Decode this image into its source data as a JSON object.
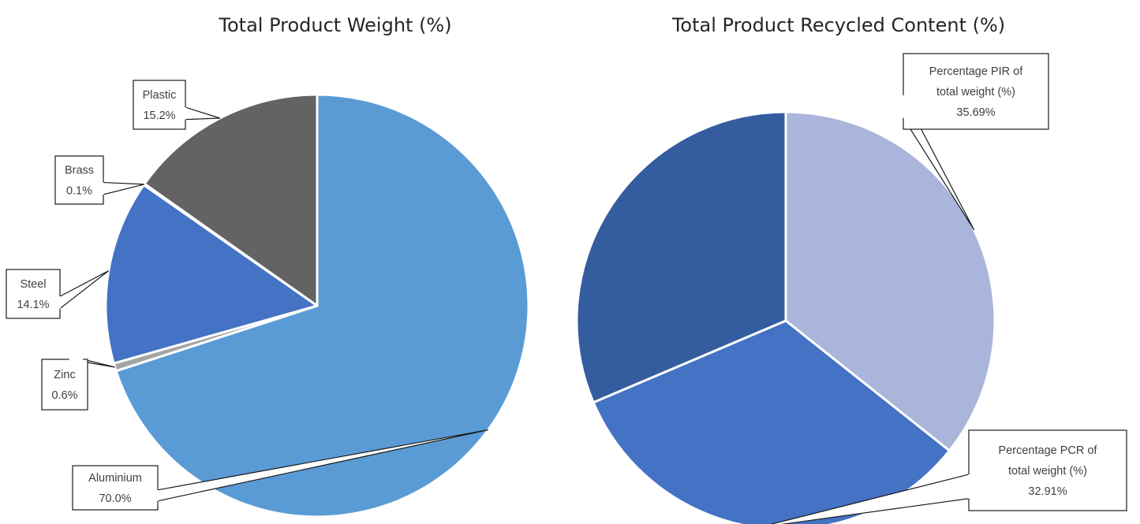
{
  "chart_data": [
    {
      "type": "pie",
      "title": "Total Product Weight (%)",
      "slices": [
        {
          "name": "Aluminium",
          "value": 70.0,
          "label": "70.0%",
          "color": "#5B9BD5"
        },
        {
          "name": "Zinc",
          "value": 0.6,
          "label": "0.6%",
          "color": "#A5A5A5"
        },
        {
          "name": "Steel",
          "value": 14.1,
          "label": "14.1%",
          "color": "#4472C4"
        },
        {
          "name": "Brass",
          "value": 0.1,
          "label": "0.1%",
          "color": "#ED7D31"
        },
        {
          "name": "Plastic",
          "value": 15.2,
          "label": "15.2%",
          "color": "#636363"
        }
      ]
    },
    {
      "type": "pie",
      "title": "Total Product Recycled Content (%)",
      "slices": [
        {
          "name": "Percentage PIR of total weight (%)",
          "label_lines": [
            "Percentage PIR of",
            "total weight (%)"
          ],
          "value": 35.69,
          "label": "35.69%",
          "color": "#A9B5DA"
        },
        {
          "name": "Percentage PCR of total weight (%)",
          "label_lines": [
            "Percentage PCR of",
            "total weight (%)"
          ],
          "value": 32.91,
          "label": "32.91%",
          "color": "#4472C4"
        },
        {
          "name": "",
          "value": 31.4,
          "label": "",
          "color": "#345D9F"
        }
      ]
    }
  ]
}
